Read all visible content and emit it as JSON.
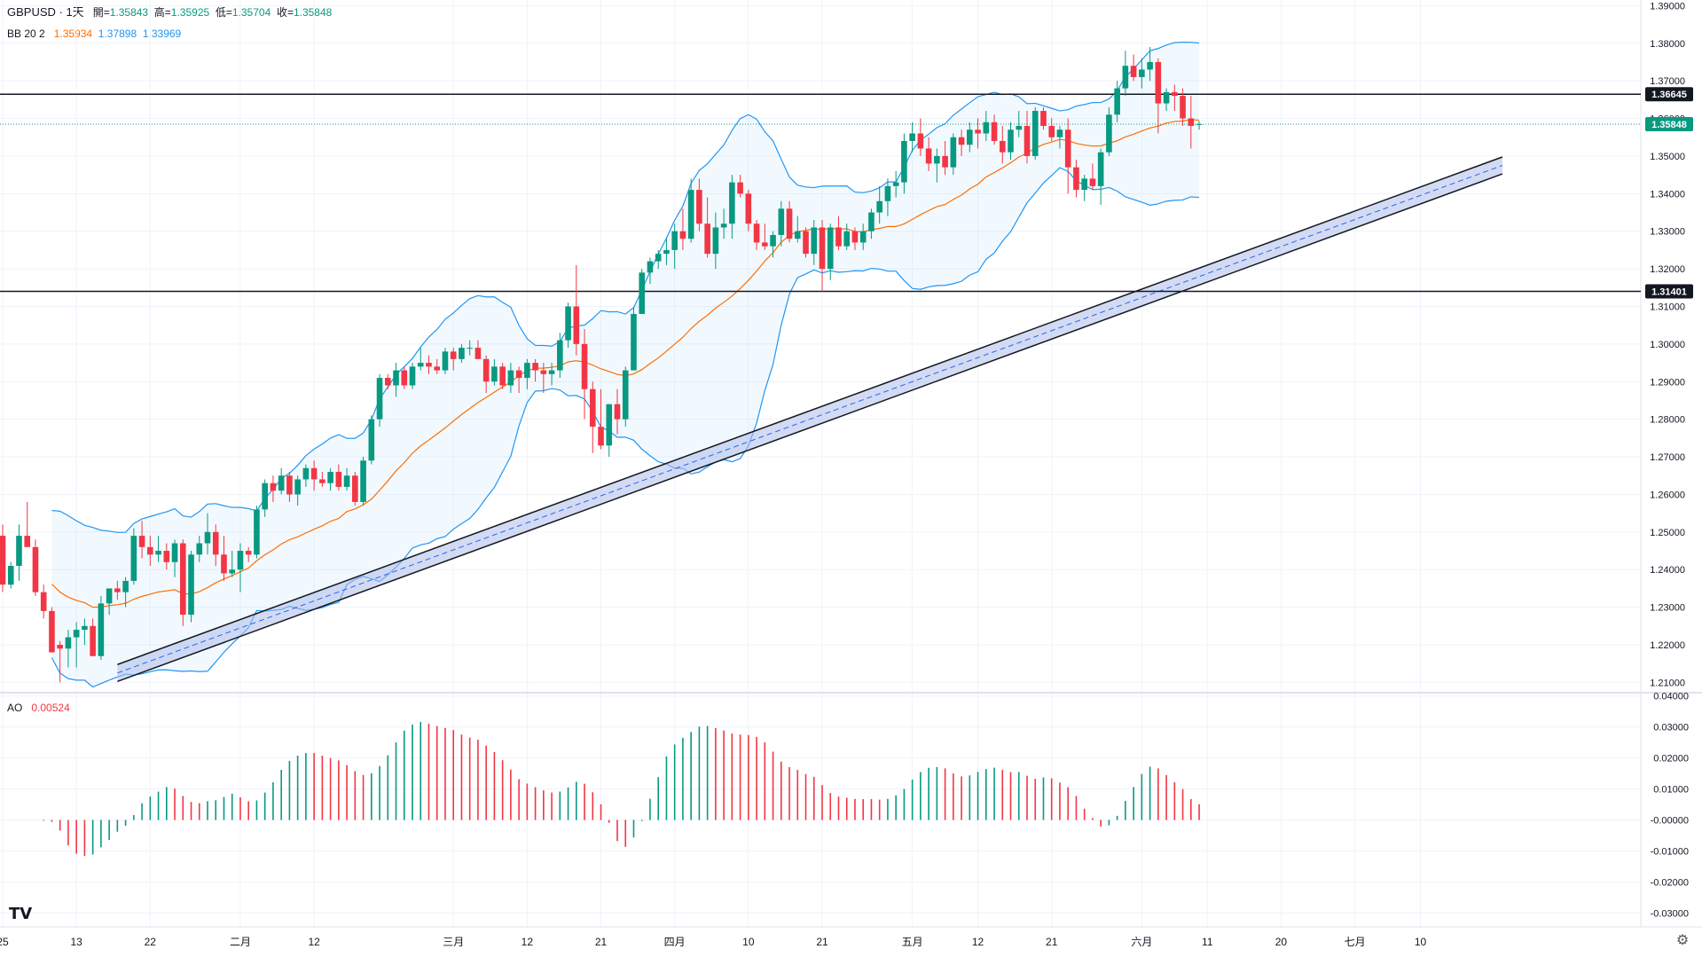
{
  "header": {
    "symbol": "GBPUSD · 1天",
    "open_label": "開=",
    "open": "1.35843",
    "high_label": "高=",
    "high": "1.35925",
    "low_label": "低=",
    "low": "1.35704",
    "close_label": "收=",
    "close": "1.35848"
  },
  "bb_legend": {
    "label": "BB 20 2",
    "basis": "1.35934",
    "upper": "1.37898",
    "lower": "1.33969"
  },
  "ao_legend": {
    "label": "AO",
    "value": "0.00524"
  },
  "colors": {
    "up": "#089981",
    "down": "#f23645",
    "bb_basis": "#ff6d00",
    "bb_band": "#2196f3",
    "bb_fill": "rgba(33,150,243,0.06)",
    "grid": "#f0f3fa",
    "channel_fill": "#aebde8"
  },
  "chart_data": [
    {
      "type": "candlestick",
      "symbol": "GBPUSD",
      "interval": "1天",
      "y_ticks": [
        "1.21000",
        "1.22000",
        "1.23000",
        "1.24000",
        "1.25000",
        "1.26000",
        "1.27000",
        "1.28000",
        "1.29000",
        "1.30000",
        "1.31000",
        "1.32000",
        "1.33000",
        "1.34000",
        "1.35000",
        "1.36000",
        "1.37000",
        "1.38000",
        "1.39000"
      ],
      "ylim": [
        1.2075,
        1.3915
      ],
      "x_labels": [
        {
          "i": 0,
          "label": "25"
        },
        {
          "i": 9,
          "label": "13"
        },
        {
          "i": 18,
          "label": "22"
        },
        {
          "i": 29,
          "label": "二月"
        },
        {
          "i": 38,
          "label": "12"
        },
        {
          "i": 55,
          "label": "三月"
        },
        {
          "i": 64,
          "label": "12"
        },
        {
          "i": 73,
          "label": "21"
        },
        {
          "i": 82,
          "label": "四月"
        },
        {
          "i": 91,
          "label": "10"
        },
        {
          "i": 100,
          "label": "21"
        },
        {
          "i": 111,
          "label": "五月"
        },
        {
          "i": 119,
          "label": "12"
        },
        {
          "i": 128,
          "label": "21"
        },
        {
          "i": 139,
          "label": "六月"
        },
        {
          "i": 147,
          "label": "11"
        },
        {
          "i": 156,
          "label": "20"
        },
        {
          "i": 165,
          "label": "七月"
        },
        {
          "i": 173,
          "label": "10"
        }
      ],
      "price_lines": [
        {
          "price": 1.36645,
          "label": "1.36645",
          "color": "#131722"
        },
        {
          "price": 1.31401,
          "label": "1.31401",
          "color": "#131722"
        }
      ],
      "last_price": {
        "price": 1.35848,
        "label": "1.35848",
        "color": "#089981"
      },
      "candles": [
        [
          1.249,
          1.252,
          1.234,
          1.236
        ],
        [
          1.236,
          1.242,
          1.235,
          1.241
        ],
        [
          1.241,
          1.252,
          1.237,
          1.249
        ],
        [
          1.249,
          1.258,
          1.247,
          1.246
        ],
        [
          1.246,
          1.248,
          1.233,
          1.234
        ],
        [
          1.234,
          1.236,
          1.227,
          1.229
        ],
        [
          1.229,
          1.23,
          1.218,
          1.218
        ],
        [
          1.22,
          1.221,
          1.21,
          1.219
        ],
        [
          1.219,
          1.224,
          1.214,
          1.222
        ],
        [
          1.222,
          1.226,
          1.214,
          1.224
        ],
        [
          1.224,
          1.227,
          1.22,
          1.225
        ],
        [
          1.225,
          1.227,
          1.218,
          1.217
        ],
        [
          1.217,
          1.233,
          1.216,
          1.231
        ],
        [
          1.231,
          1.234,
          1.228,
          1.235
        ],
        [
          1.235,
          1.237,
          1.232,
          1.234
        ],
        [
          1.234,
          1.238,
          1.23,
          1.237
        ],
        [
          1.237,
          1.251,
          1.236,
          1.249
        ],
        [
          1.249,
          1.253,
          1.243,
          1.246
        ],
        [
          1.246,
          1.249,
          1.241,
          1.244
        ],
        [
          1.244,
          1.249,
          1.242,
          1.245
        ],
        [
          1.245,
          1.247,
          1.24,
          1.242
        ],
        [
          1.242,
          1.248,
          1.238,
          1.247
        ],
        [
          1.247,
          1.248,
          1.225,
          1.228
        ],
        [
          1.228,
          1.245,
          1.226,
          1.244
        ],
        [
          1.244,
          1.249,
          1.242,
          1.247
        ],
        [
          1.247,
          1.255,
          1.244,
          1.25
        ],
        [
          1.25,
          1.252,
          1.241,
          1.244
        ],
        [
          1.244,
          1.249,
          1.237,
          1.239
        ],
        [
          1.239,
          1.245,
          1.238,
          1.24
        ],
        [
          1.24,
          1.247,
          1.234,
          1.245
        ],
        [
          1.245,
          1.246,
          1.242,
          1.244
        ],
        [
          1.244,
          1.257,
          1.243,
          1.256
        ],
        [
          1.256,
          1.264,
          1.254,
          1.263
        ],
        [
          1.263,
          1.265,
          1.258,
          1.261
        ],
        [
          1.261,
          1.267,
          1.26,
          1.265
        ],
        [
          1.265,
          1.266,
          1.258,
          1.26
        ],
        [
          1.26,
          1.265,
          1.257,
          1.264
        ],
        [
          1.264,
          1.268,
          1.262,
          1.267
        ],
        [
          1.267,
          1.269,
          1.261,
          1.264
        ],
        [
          1.264,
          1.266,
          1.262,
          1.263
        ],
        [
          1.263,
          1.267,
          1.261,
          1.266
        ],
        [
          1.266,
          1.268,
          1.261,
          1.262
        ],
        [
          1.262,
          1.267,
          1.261,
          1.265
        ],
        [
          1.265,
          1.266,
          1.257,
          1.258
        ],
        [
          1.258,
          1.27,
          1.257,
          1.269
        ],
        [
          1.269,
          1.281,
          1.268,
          1.28
        ],
        [
          1.28,
          1.292,
          1.278,
          1.291
        ],
        [
          1.291,
          1.292,
          1.288,
          1.289
        ],
        [
          1.289,
          1.295,
          1.286,
          1.293
        ],
        [
          1.293,
          1.294,
          1.288,
          1.289
        ],
        [
          1.289,
          1.295,
          1.288,
          1.294
        ],
        [
          1.294,
          1.299,
          1.293,
          1.295
        ],
        [
          1.295,
          1.297,
          1.292,
          1.294
        ],
        [
          1.294,
          1.296,
          1.292,
          1.293
        ],
        [
          1.293,
          1.299,
          1.292,
          1.298
        ],
        [
          1.298,
          1.299,
          1.293,
          1.296
        ],
        [
          1.296,
          1.3,
          1.295,
          1.299
        ],
        [
          1.299,
          1.301,
          1.297,
          1.299
        ],
        [
          1.299,
          1.301,
          1.296,
          1.296
        ],
        [
          1.296,
          1.297,
          1.287,
          1.29
        ],
        [
          1.29,
          1.296,
          1.289,
          1.294
        ],
        [
          1.294,
          1.295,
          1.288,
          1.289
        ],
        [
          1.289,
          1.295,
          1.287,
          1.293
        ],
        [
          1.293,
          1.294,
          1.287,
          1.291
        ],
        [
          1.291,
          1.296,
          1.288,
          1.295
        ],
        [
          1.295,
          1.296,
          1.29,
          1.293
        ],
        [
          1.293,
          1.295,
          1.287,
          1.292
        ],
        [
          1.292,
          1.295,
          1.289,
          1.293
        ],
        [
          1.293,
          1.303,
          1.291,
          1.301
        ],
        [
          1.301,
          1.311,
          1.299,
          1.31
        ],
        [
          1.31,
          1.321,
          1.297,
          1.3
        ],
        [
          1.3,
          1.304,
          1.28,
          1.288
        ],
        [
          1.288,
          1.29,
          1.271,
          1.278
        ],
        [
          1.278,
          1.288,
          1.272,
          1.273
        ],
        [
          1.273,
          1.284,
          1.27,
          1.284
        ],
        [
          1.284,
          1.288,
          1.276,
          1.28
        ],
        [
          1.28,
          1.294,
          1.278,
          1.293
        ],
        [
          1.293,
          1.31,
          1.293,
          1.308
        ],
        [
          1.308,
          1.32,
          1.308,
          1.319
        ],
        [
          1.319,
          1.323,
          1.316,
          1.322
        ],
        [
          1.322,
          1.325,
          1.32,
          1.324
        ],
        [
          1.324,
          1.328,
          1.321,
          1.325
        ],
        [
          1.325,
          1.332,
          1.32,
          1.33
        ],
        [
          1.33,
          1.336,
          1.325,
          1.328
        ],
        [
          1.328,
          1.344,
          1.327,
          1.341
        ],
        [
          1.341,
          1.344,
          1.33,
          1.332
        ],
        [
          1.332,
          1.339,
          1.323,
          1.324
        ],
        [
          1.324,
          1.335,
          1.32,
          1.331
        ],
        [
          1.331,
          1.336,
          1.328,
          1.332
        ],
        [
          1.332,
          1.345,
          1.328,
          1.343
        ],
        [
          1.343,
          1.345,
          1.339,
          1.34
        ],
        [
          1.34,
          1.341,
          1.33,
          1.332
        ],
        [
          1.332,
          1.333,
          1.325,
          1.327
        ],
        [
          1.327,
          1.332,
          1.325,
          1.326
        ],
        [
          1.326,
          1.33,
          1.323,
          1.329
        ],
        [
          1.329,
          1.338,
          1.326,
          1.336
        ],
        [
          1.336,
          1.338,
          1.327,
          1.328
        ],
        [
          1.328,
          1.334,
          1.327,
          1.33
        ],
        [
          1.33,
          1.331,
          1.323,
          1.324
        ],
        [
          1.324,
          1.333,
          1.321,
          1.331
        ],
        [
          1.331,
          1.333,
          1.314,
          1.32
        ],
        [
          1.32,
          1.332,
          1.317,
          1.331
        ],
        [
          1.331,
          1.334,
          1.325,
          1.326
        ],
        [
          1.326,
          1.332,
          1.325,
          1.33
        ],
        [
          1.33,
          1.331,
          1.325,
          1.327
        ],
        [
          1.327,
          1.332,
          1.325,
          1.33
        ],
        [
          1.33,
          1.336,
          1.328,
          1.335
        ],
        [
          1.335,
          1.342,
          1.332,
          1.338
        ],
        [
          1.338,
          1.344,
          1.334,
          1.342
        ],
        [
          1.342,
          1.346,
          1.339,
          1.343
        ],
        [
          1.343,
          1.356,
          1.34,
          1.354
        ],
        [
          1.354,
          1.359,
          1.351,
          1.356
        ],
        [
          1.356,
          1.36,
          1.35,
          1.352
        ],
        [
          1.352,
          1.355,
          1.346,
          1.348
        ],
        [
          1.348,
          1.352,
          1.343,
          1.35
        ],
        [
          1.35,
          1.354,
          1.345,
          1.347
        ],
        [
          1.347,
          1.356,
          1.345,
          1.355
        ],
        [
          1.355,
          1.357,
          1.35,
          1.353
        ],
        [
          1.353,
          1.359,
          1.351,
          1.357
        ],
        [
          1.357,
          1.36,
          1.352,
          1.356
        ],
        [
          1.356,
          1.362,
          1.354,
          1.359
        ],
        [
          1.359,
          1.361,
          1.353,
          1.354
        ],
        [
          1.354,
          1.358,
          1.348,
          1.351
        ],
        [
          1.351,
          1.359,
          1.349,
          1.357
        ],
        [
          1.357,
          1.362,
          1.355,
          1.358
        ],
        [
          1.358,
          1.362,
          1.348,
          1.35
        ],
        [
          1.35,
          1.363,
          1.349,
          1.362
        ],
        [
          1.362,
          1.363,
          1.357,
          1.358
        ],
        [
          1.358,
          1.36,
          1.354,
          1.355
        ],
        [
          1.355,
          1.358,
          1.352,
          1.357
        ],
        [
          1.357,
          1.36,
          1.34,
          1.347
        ],
        [
          1.347,
          1.349,
          1.339,
          1.341
        ],
        [
          1.341,
          1.345,
          1.338,
          1.344
        ],
        [
          1.344,
          1.348,
          1.341,
          1.342
        ],
        [
          1.342,
          1.352,
          1.337,
          1.351
        ],
        [
          1.351,
          1.363,
          1.35,
          1.361
        ],
        [
          1.361,
          1.37,
          1.359,
          1.368
        ],
        [
          1.368,
          1.378,
          1.366,
          1.374
        ],
        [
          1.374,
          1.377,
          1.37,
          1.371
        ],
        [
          1.371,
          1.376,
          1.368,
          1.373
        ],
        [
          1.373,
          1.379,
          1.37,
          1.375
        ],
        [
          1.375,
          1.376,
          1.356,
          1.364
        ],
        [
          1.364,
          1.368,
          1.362,
          1.367
        ],
        [
          1.367,
          1.369,
          1.362,
          1.366
        ],
        [
          1.366,
          1.368,
          1.358,
          1.36
        ],
        [
          1.36,
          1.366,
          1.352,
          1.358
        ],
        [
          1.3584,
          1.3593,
          1.357,
          1.3585
        ]
      ],
      "bollinger": {
        "period": 20,
        "mult": 2
      },
      "channel": {
        "start": {
          "i": 14,
          "price": 1.2125
        },
        "end": {
          "i": 183,
          "price": 1.3475
        },
        "width": 0.0045
      }
    },
    {
      "type": "bar",
      "indicator": "AO",
      "value_label": "0.00524",
      "y_ticks": [
        "-0.03000",
        "-0.02000",
        "-0.01000",
        "-0.00000",
        "0.01000",
        "0.02000",
        "0.03000",
        "0.04000"
      ],
      "ylim": [
        -0.0345,
        0.0405
      ]
    }
  ]
}
